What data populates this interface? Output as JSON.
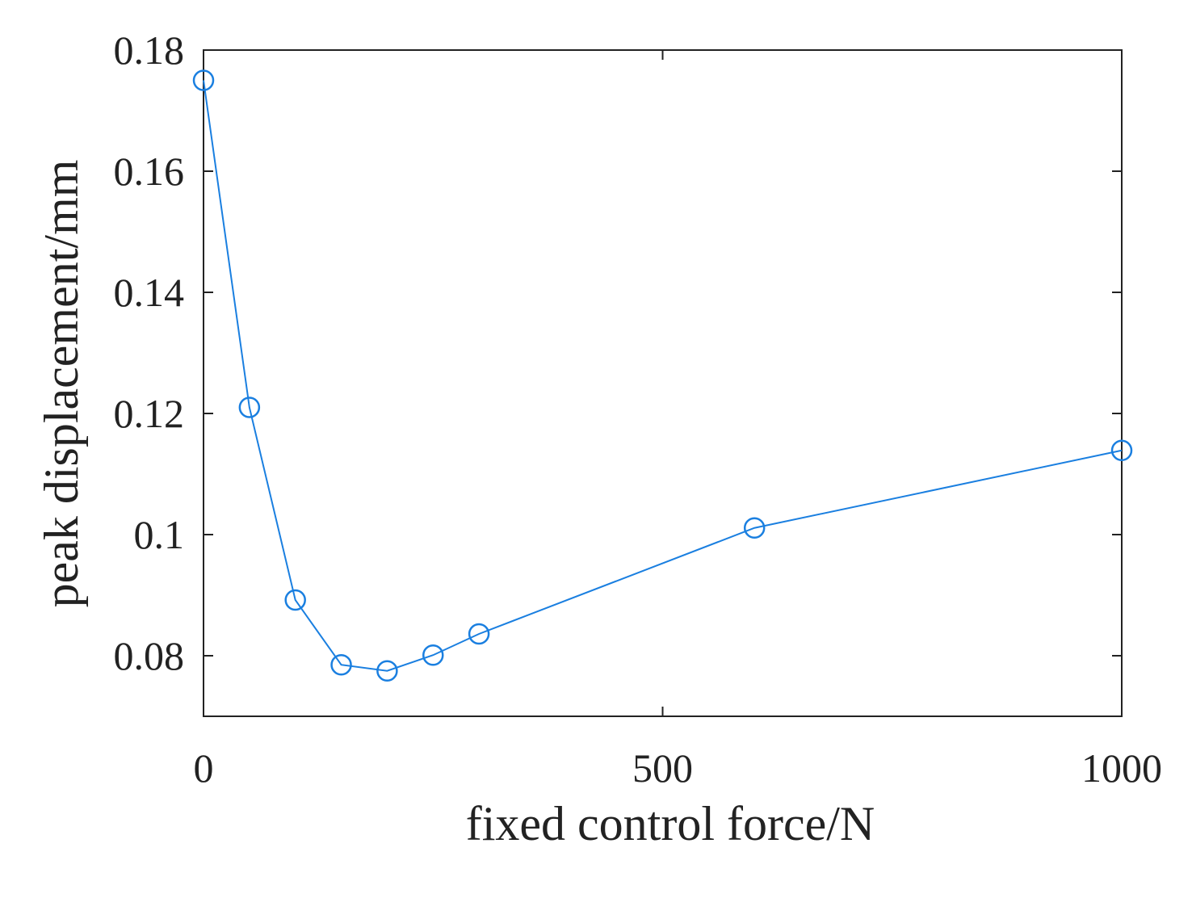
{
  "chart_data": {
    "type": "line",
    "x_label": "fixed control force/N",
    "y_label": "peak displacement/mm",
    "x": [
      0,
      50,
      100,
      150,
      200,
      250,
      300,
      600,
      1000
    ],
    "series": [
      {
        "color": "#1a7fe0",
        "values": [
          0.175,
          0.121,
          0.0892,
          0.0785,
          0.0775,
          0.0801,
          0.0836,
          0.1011,
          0.1139
        ]
      }
    ],
    "xlim": [
      0,
      1000
    ],
    "xticks": [
      0,
      500,
      1000
    ],
    "ylim": [
      0.07,
      0.18
    ],
    "yticks": [
      0.08,
      0.1,
      0.12,
      0.14,
      0.16,
      0.18
    ],
    "marker": "circle"
  }
}
